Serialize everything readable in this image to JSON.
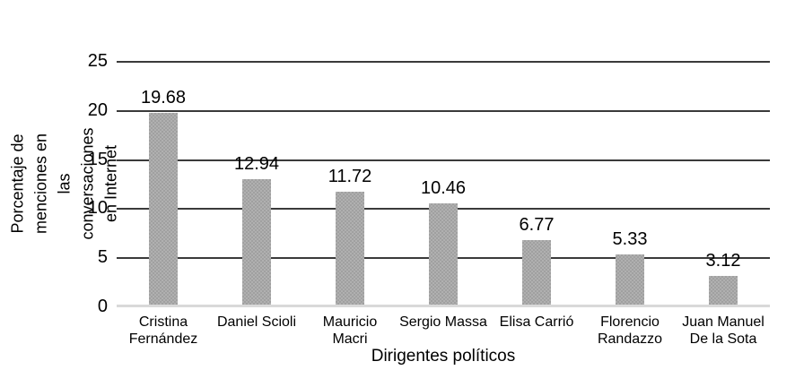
{
  "chart_data": {
    "type": "bar",
    "title": "",
    "categories": [
      "Cristina Fernández",
      "Daniel Scioli",
      "Mauricio Macri",
      "Sergio Massa",
      "Elisa Carrió",
      "Florencio Randazzo",
      "Juan Manuel De la Sota"
    ],
    "values": [
      19.68,
      12.94,
      11.72,
      10.46,
      6.77,
      5.33,
      3.12
    ],
    "xlabel": "Dirigentes políticos",
    "ylabel": "Porcentaje de menciones en las conversaciones en Internet",
    "ylim": [
      0,
      25
    ],
    "yticks": [
      25,
      20,
      15,
      10,
      5,
      0
    ],
    "grid": true,
    "legend_position": "none",
    "bar_color": "#a6a6a6",
    "gridline_color": "#3a3a3a",
    "baseline_color": "#d9d9d9"
  },
  "axis": {
    "y_title": "Porcentaje de menciones en las\nconversaciones en Internet",
    "x_title": "Dirigentes políticos",
    "tick_labels": [
      "25",
      "20",
      "15",
      "10",
      "5",
      "0"
    ]
  },
  "bars": [
    {
      "label": "Cristina\nFernández",
      "value": 19.68,
      "value_label": "19.68"
    },
    {
      "label": "Daniel Scioli",
      "value": 12.94,
      "value_label": "12.94"
    },
    {
      "label": "Mauricio\nMacri",
      "value": 11.72,
      "value_label": "11.72"
    },
    {
      "label": "Sergio Massa",
      "value": 10.46,
      "value_label": "10.46"
    },
    {
      "label": "Elisa Carrió",
      "value": 6.77,
      "value_label": "6.77"
    },
    {
      "label": "Florencio\nRandazzo",
      "value": 5.33,
      "value_label": "5.33"
    },
    {
      "label": "Juan Manuel\nDe la Sota",
      "value": 3.12,
      "value_label": "3.12"
    }
  ]
}
